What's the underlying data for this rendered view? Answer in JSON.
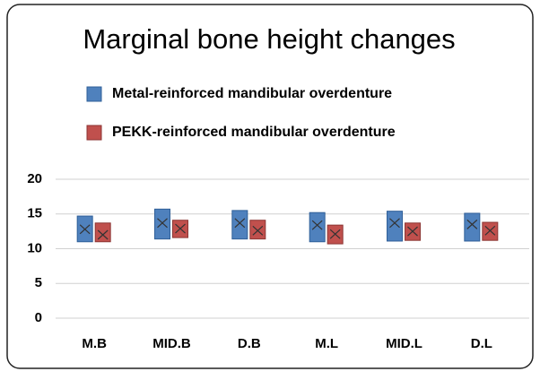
{
  "chart_data": {
    "type": "box",
    "title": "Marginal bone height changes",
    "categories": [
      "M.B",
      "MID.B",
      "D.B",
      "M.L",
      "MID.L",
      "D.L"
    ],
    "series": [
      {
        "name": "Metal-reinforced mandibular overdenture",
        "color": "#4f81bd",
        "edge": "#2f5f98",
        "q1": [
          11.0,
          11.4,
          11.4,
          11.0,
          11.1,
          11.1
        ],
        "q3": [
          14.7,
          15.7,
          15.5,
          15.2,
          15.4,
          15.1
        ],
        "mean": [
          12.8,
          13.7,
          13.7,
          13.4,
          13.7,
          13.5
        ]
      },
      {
        "name": "PEKK-reinforced mandibular overdenture",
        "color": "#c0504d",
        "edge": "#8c3533",
        "q1": [
          11.0,
          11.6,
          11.4,
          10.7,
          11.2,
          11.2
        ],
        "q3": [
          13.7,
          14.1,
          14.1,
          13.4,
          13.7,
          13.8
        ],
        "mean": [
          12.0,
          12.9,
          12.6,
          12.1,
          12.5,
          12.6
        ]
      }
    ],
    "ylim": [
      0,
      20
    ],
    "yticks": [
      0,
      5,
      10,
      15,
      20
    ],
    "grid": true
  }
}
